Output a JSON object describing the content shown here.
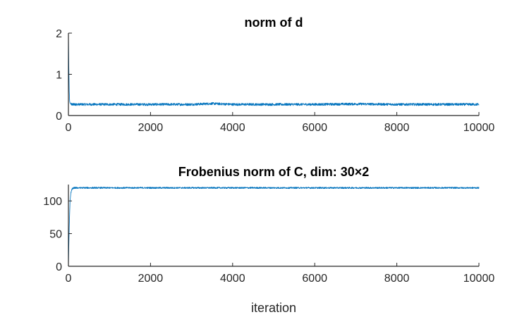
{
  "chart_data": [
    {
      "type": "line",
      "title": "norm of d",
      "xlabel": "",
      "ylabel": "",
      "xlim": [
        0,
        10000
      ],
      "ylim": [
        0,
        2
      ],
      "xticks": [
        0,
        2000,
        4000,
        6000,
        8000,
        10000
      ],
      "yticks": [
        0,
        1,
        2
      ],
      "xtick_labels": [
        "0",
        "2000",
        "4000",
        "6000",
        "8000",
        "10000"
      ],
      "ytick_labels": [
        "0",
        "1",
        "2"
      ],
      "grid": false,
      "color": "#0072bd",
      "series": [
        {
          "x": [
            0,
            10,
            20,
            30,
            40,
            60,
            80,
            100,
            150,
            200,
            500,
            1000,
            2000,
            3000,
            3500,
            4000,
            5000,
            6000,
            7000,
            8000,
            9000,
            10000
          ],
          "values": [
            2.0,
            1.2,
            0.6,
            0.35,
            0.3,
            0.28,
            0.27,
            0.27,
            0.27,
            0.27,
            0.27,
            0.27,
            0.27,
            0.27,
            0.29,
            0.27,
            0.27,
            0.27,
            0.28,
            0.27,
            0.27,
            0.27
          ],
          "noise": 0.03
        }
      ]
    },
    {
      "type": "line",
      "title": "Frobenius norm of C, dim: 30×2",
      "xlabel": "iteration",
      "ylabel": "",
      "xlim": [
        0,
        10000
      ],
      "ylim": [
        0,
        125
      ],
      "xticks": [
        0,
        2000,
        4000,
        6000,
        8000,
        10000
      ],
      "yticks": [
        0,
        50,
        100
      ],
      "xtick_labels": [
        "0",
        "2000",
        "4000",
        "6000",
        "8000",
        "10000"
      ],
      "ytick_labels": [
        "0",
        "50",
        "100"
      ],
      "grid": false,
      "color": "#0072bd",
      "series": [
        {
          "x": [
            0,
            10,
            20,
            30,
            40,
            60,
            80,
            100,
            150,
            200,
            500,
            1000,
            2000,
            3000,
            4000,
            5000,
            6000,
            7000,
            8000,
            9000,
            10000
          ],
          "values": [
            0,
            30,
            60,
            80,
            100,
            112,
            117,
            119,
            120,
            120,
            120,
            120,
            120,
            120,
            120,
            120,
            120,
            120,
            120,
            120,
            120
          ],
          "noise": 1.2
        }
      ]
    }
  ]
}
